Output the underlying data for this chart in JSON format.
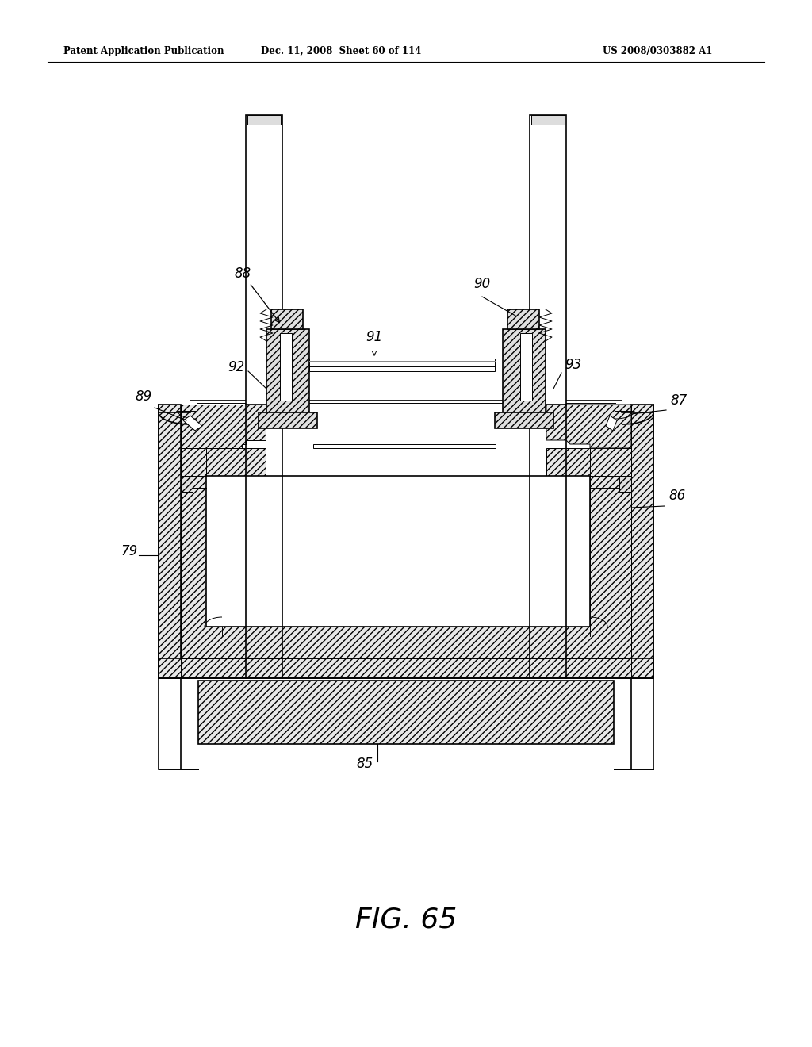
{
  "header_left": "Patent Application Publication",
  "header_mid": "Dec. 11, 2008  Sheet 60 of 114",
  "header_right": "US 2008/0303882 A1",
  "figure_label": "FIG. 65",
  "bg_color": "#ffffff",
  "line_color": "#000000"
}
